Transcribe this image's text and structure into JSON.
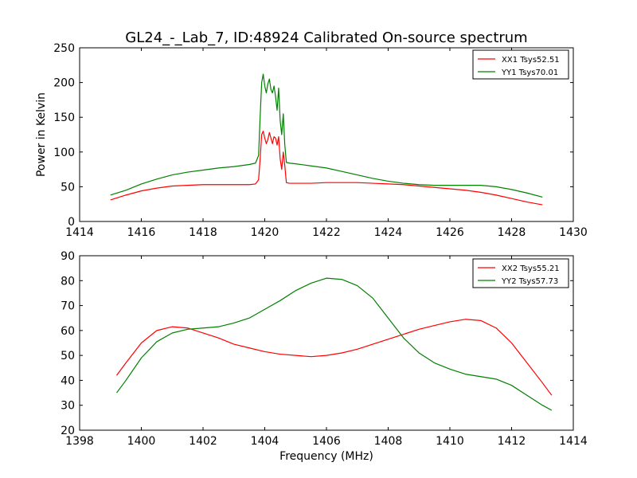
{
  "figure_title": "GL24_-_Lab_7, ID:48924 Calibrated On-source spectrum",
  "chart_data": [
    {
      "type": "line",
      "ylabel": "Power in Kelvin",
      "xlabel": "",
      "xlim": [
        1414,
        1430
      ],
      "ylim": [
        0,
        250
      ],
      "xticks": [
        "1414",
        "1416",
        "1418",
        "1420",
        "1422",
        "1424",
        "1426",
        "1428",
        "1430"
      ],
      "yticks": [
        "0",
        "50",
        "100",
        "150",
        "200",
        "250"
      ],
      "legend_position": "top-right",
      "series": [
        {
          "name": "XX1 Tsys52.51",
          "color": "#ff0000",
          "points": [
            [
              1415.0,
              31
            ],
            [
              1415.5,
              38
            ],
            [
              1416.0,
              44
            ],
            [
              1416.5,
              48
            ],
            [
              1417.0,
              51
            ],
            [
              1417.5,
              52
            ],
            [
              1418.0,
              53
            ],
            [
              1418.5,
              53
            ],
            [
              1419.0,
              53
            ],
            [
              1419.5,
              53
            ],
            [
              1419.7,
              54
            ],
            [
              1419.8,
              60
            ],
            [
              1419.85,
              90
            ],
            [
              1419.9,
              125
            ],
            [
              1419.95,
              130
            ],
            [
              1420.0,
              120
            ],
            [
              1420.05,
              112
            ],
            [
              1420.1,
              118
            ],
            [
              1420.15,
              128
            ],
            [
              1420.2,
              120
            ],
            [
              1420.25,
              112
            ],
            [
              1420.3,
              122
            ],
            [
              1420.35,
              120
            ],
            [
              1420.4,
              110
            ],
            [
              1420.45,
              122
            ],
            [
              1420.5,
              90
            ],
            [
              1420.55,
              75
            ],
            [
              1420.6,
              100
            ],
            [
              1420.65,
              80
            ],
            [
              1420.7,
              56
            ],
            [
              1420.8,
              55
            ],
            [
              1421.0,
              55
            ],
            [
              1421.5,
              55
            ],
            [
              1422.0,
              56
            ],
            [
              1422.5,
              56
            ],
            [
              1423.0,
              56
            ],
            [
              1423.5,
              55
            ],
            [
              1424.0,
              54
            ],
            [
              1424.5,
              53
            ],
            [
              1425.0,
              51
            ],
            [
              1425.5,
              49
            ],
            [
              1426.0,
              47
            ],
            [
              1426.5,
              45
            ],
            [
              1427.0,
              42
            ],
            [
              1427.5,
              38
            ],
            [
              1428.0,
              33
            ],
            [
              1428.5,
              28
            ],
            [
              1429.0,
              24
            ]
          ]
        },
        {
          "name": "YY1 Tsys70.01",
          "color": "#008000",
          "points": [
            [
              1415.0,
              38
            ],
            [
              1415.5,
              45
            ],
            [
              1416.0,
              54
            ],
            [
              1416.5,
              61
            ],
            [
              1417.0,
              67
            ],
            [
              1417.5,
              71
            ],
            [
              1418.0,
              74
            ],
            [
              1418.5,
              77
            ],
            [
              1419.0,
              79
            ],
            [
              1419.5,
              82
            ],
            [
              1419.7,
              84
            ],
            [
              1419.8,
              95
            ],
            [
              1419.85,
              150
            ],
            [
              1419.9,
              200
            ],
            [
              1419.95,
              212
            ],
            [
              1420.0,
              195
            ],
            [
              1420.05,
              185
            ],
            [
              1420.1,
              198
            ],
            [
              1420.15,
              205
            ],
            [
              1420.2,
              190
            ],
            [
              1420.25,
              185
            ],
            [
              1420.3,
              195
            ],
            [
              1420.35,
              180
            ],
            [
              1420.4,
              160
            ],
            [
              1420.45,
              192
            ],
            [
              1420.5,
              145
            ],
            [
              1420.55,
              125
            ],
            [
              1420.6,
              155
            ],
            [
              1420.65,
              110
            ],
            [
              1420.7,
              85
            ],
            [
              1420.8,
              84
            ],
            [
              1421.0,
              83
            ],
            [
              1421.5,
              80
            ],
            [
              1422.0,
              77
            ],
            [
              1422.5,
              72
            ],
            [
              1423.0,
              67
            ],
            [
              1423.5,
              62
            ],
            [
              1424.0,
              58
            ],
            [
              1424.5,
              55
            ],
            [
              1425.0,
              53
            ],
            [
              1425.5,
              52
            ],
            [
              1426.0,
              52
            ],
            [
              1426.5,
              52
            ],
            [
              1427.0,
              52
            ],
            [
              1427.5,
              50
            ],
            [
              1428.0,
              46
            ],
            [
              1428.5,
              41
            ],
            [
              1429.0,
              35
            ]
          ]
        }
      ]
    },
    {
      "type": "line",
      "ylabel": "",
      "xlabel": "Frequency (MHz)",
      "xlim": [
        1398,
        1414
      ],
      "ylim": [
        20,
        90
      ],
      "xticks": [
        "1398",
        "1400",
        "1402",
        "1404",
        "1406",
        "1408",
        "1410",
        "1412",
        "1414"
      ],
      "yticks": [
        "20",
        "30",
        "40",
        "50",
        "60",
        "70",
        "80",
        "90"
      ],
      "legend_position": "top-right",
      "series": [
        {
          "name": "XX2 Tsys55.21",
          "color": "#ff0000",
          "points": [
            [
              1399.2,
              42
            ],
            [
              1399.5,
              47
            ],
            [
              1400.0,
              55
            ],
            [
              1400.5,
              60
            ],
            [
              1401.0,
              61.5
            ],
            [
              1401.5,
              61
            ],
            [
              1402.0,
              59
            ],
            [
              1402.5,
              57
            ],
            [
              1403.0,
              54.5
            ],
            [
              1403.5,
              53
            ],
            [
              1404.0,
              51.5
            ],
            [
              1404.5,
              50.5
            ],
            [
              1405.0,
              50
            ],
            [
              1405.5,
              49.5
            ],
            [
              1406.0,
              50
            ],
            [
              1406.5,
              51
            ],
            [
              1407.0,
              52.5
            ],
            [
              1407.5,
              54.5
            ],
            [
              1408.0,
              56.5
            ],
            [
              1408.5,
              58.5
            ],
            [
              1409.0,
              60.5
            ],
            [
              1409.5,
              62
            ],
            [
              1410.0,
              63.5
            ],
            [
              1410.5,
              64.5
            ],
            [
              1411.0,
              64
            ],
            [
              1411.5,
              61
            ],
            [
              1412.0,
              55
            ],
            [
              1412.5,
              47
            ],
            [
              1413.0,
              39
            ],
            [
              1413.3,
              34
            ]
          ]
        },
        {
          "name": "YY2 Tsys57.73",
          "color": "#008000",
          "points": [
            [
              1399.2,
              35
            ],
            [
              1399.5,
              40
            ],
            [
              1400.0,
              49
            ],
            [
              1400.5,
              55.5
            ],
            [
              1401.0,
              59
            ],
            [
              1401.5,
              60.5
            ],
            [
              1402.0,
              61
            ],
            [
              1402.5,
              61.5
            ],
            [
              1403.0,
              63
            ],
            [
              1403.5,
              65
            ],
            [
              1404.0,
              68.5
            ],
            [
              1404.5,
              72
            ],
            [
              1405.0,
              76
            ],
            [
              1405.5,
              79
            ],
            [
              1406.0,
              81
            ],
            [
              1406.5,
              80.5
            ],
            [
              1407.0,
              78
            ],
            [
              1407.5,
              73
            ],
            [
              1408.0,
              65
            ],
            [
              1408.5,
              57
            ],
            [
              1409.0,
              51
            ],
            [
              1409.5,
              47
            ],
            [
              1410.0,
              44.5
            ],
            [
              1410.5,
              42.5
            ],
            [
              1411.0,
              41.5
            ],
            [
              1411.5,
              40.5
            ],
            [
              1412.0,
              38
            ],
            [
              1412.5,
              34
            ],
            [
              1413.0,
              30
            ],
            [
              1413.3,
              28
            ]
          ]
        }
      ]
    }
  ]
}
